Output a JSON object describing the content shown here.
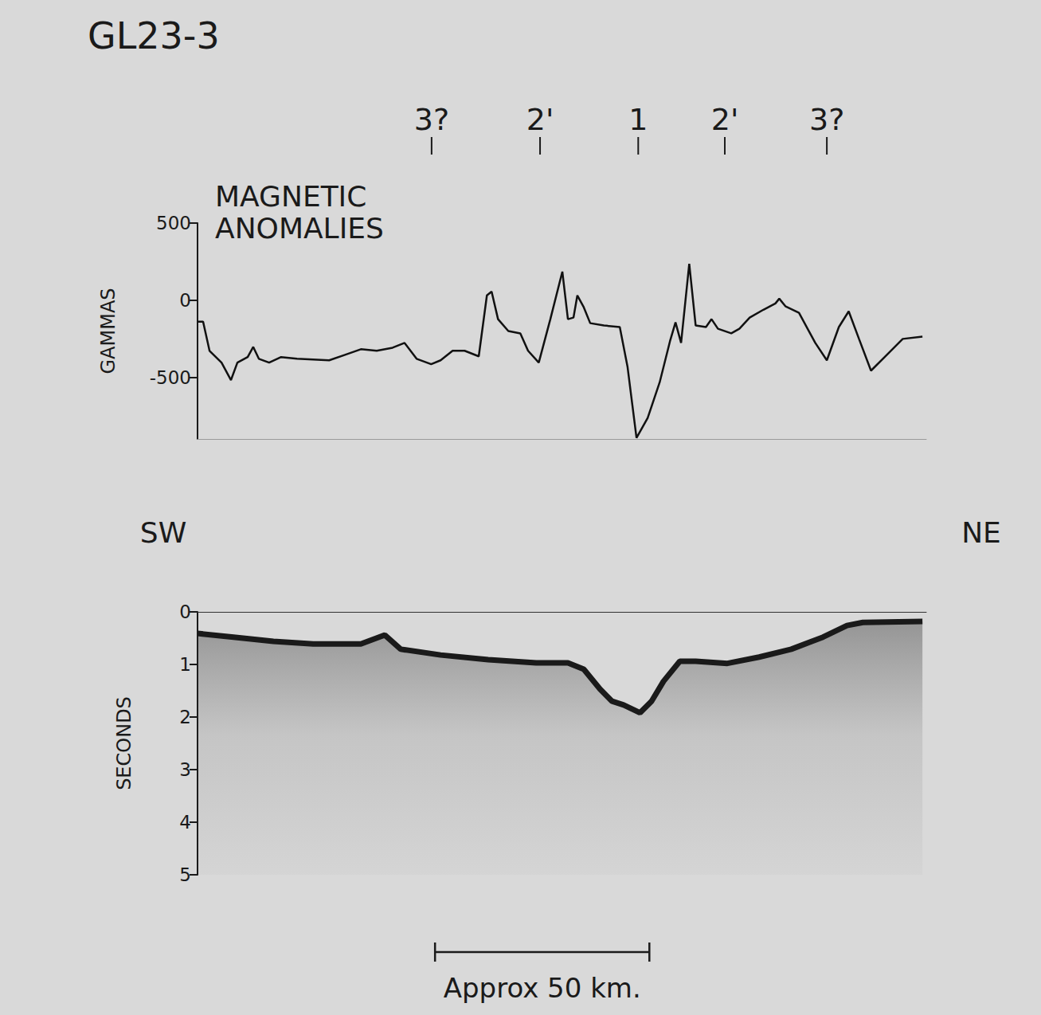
{
  "title": "GL23-3",
  "chart_data": [
    {
      "type": "line",
      "title": "MAGNETIC ANOMALIES",
      "y_label": "GAMMAS",
      "x": [
        0,
        1.3,
        2.8,
        5.6,
        7.8,
        9.3,
        11.7,
        13,
        14.3,
        16.7,
        19.5,
        23.2,
        30.7,
        34.4,
        38.1,
        41.8,
        45.5,
        48.3,
        51.1,
        54.5,
        56.7,
        59.5,
        62.3,
        65.6,
        67.5,
        68.6,
        70.1,
        72.5,
        75.3,
        77.1,
        79.6,
        82.3,
        85.1,
        86.4,
        87.7,
        88.6,
        90.1,
        91.6,
        94.8,
        98.5,
        100.3,
        102.4,
        105,
        107.8,
        110.2,
        111.5,
        112.8,
        114.7,
        116.2,
        118.6,
        119.9,
        121.4,
        124.5,
        126.4,
        128.8,
        132,
        134.8,
        135.7,
        137.2,
        140.3,
        144.1,
        146.8,
        149.6,
        151.9,
        154.3,
        157.1,
        160.8,
        164.5,
        169.1
      ],
      "values": [
        -139,
        -139,
        -328,
        -405,
        -518,
        -405,
        -369,
        -303,
        -380,
        -405,
        -369,
        -380,
        -390,
        -354,
        -318,
        -328,
        -308,
        -277,
        -380,
        -415,
        -390,
        -328,
        -328,
        -364,
        31,
        56,
        -123,
        -200,
        -215,
        -328,
        -405,
        -123,
        185,
        -123,
        -113,
        31,
        -46,
        -149,
        -164,
        -174,
        -431,
        -893,
        -764,
        -533,
        -267,
        -144,
        -277,
        236,
        -164,
        -174,
        -123,
        -185,
        -215,
        -185,
        -113,
        -62,
        -21,
        10,
        -41,
        -82,
        -277,
        -390,
        -174,
        -72,
        -251,
        -457,
        -354,
        -251,
        -236
      ],
      "color": "#111111",
      "xlim": [
        0,
        170
      ],
      "ylim": [
        -900,
        500
      ],
      "yticks": [
        -500,
        0,
        500
      ],
      "tick_labels": "y",
      "grid": false,
      "annotations": [
        {
          "x": 54.6,
          "text": "3?"
        },
        {
          "x": 79.9,
          "text": "2'"
        },
        {
          "x": 102.8,
          "text": "1"
        },
        {
          "x": 123,
          "text": "2'"
        },
        {
          "x": 146.8,
          "text": "3?"
        }
      ]
    },
    {
      "type": "line",
      "y_label": "SECONDS",
      "x": [
        0,
        8.4,
        17.7,
        27,
        38.1,
        43.7,
        47.4,
        56.7,
        67.8,
        79,
        86.4,
        90.1,
        93.9,
        96.7,
        99.4,
        103.2,
        105.9,
        108.7,
        112.5,
        116.2,
        123.6,
        131,
        138.5,
        145.9,
        151.5,
        155.2,
        169.1
      ],
      "values": [
        0.41,
        0.48,
        0.56,
        0.61,
        0.61,
        0.44,
        0.71,
        0.82,
        0.91,
        0.97,
        0.97,
        1.09,
        1.47,
        1.7,
        1.77,
        1.92,
        1.7,
        1.32,
        0.94,
        0.94,
        0.98,
        0.86,
        0.71,
        0.48,
        0.26,
        0.2,
        0.18
      ],
      "color": "#1a1a1a",
      "xlim": [
        0,
        170
      ],
      "ylim": [
        0,
        5
      ],
      "yticks": [
        0,
        1,
        2,
        3,
        4,
        5
      ],
      "tick_labels": "y",
      "grid": false,
      "annotations": [
        {
          "text": "SW"
        },
        {
          "text": "NE"
        }
      ],
      "scale_bar": {
        "from": 55.4,
        "to": 105.4,
        "label": "Approx 50 km."
      }
    }
  ]
}
